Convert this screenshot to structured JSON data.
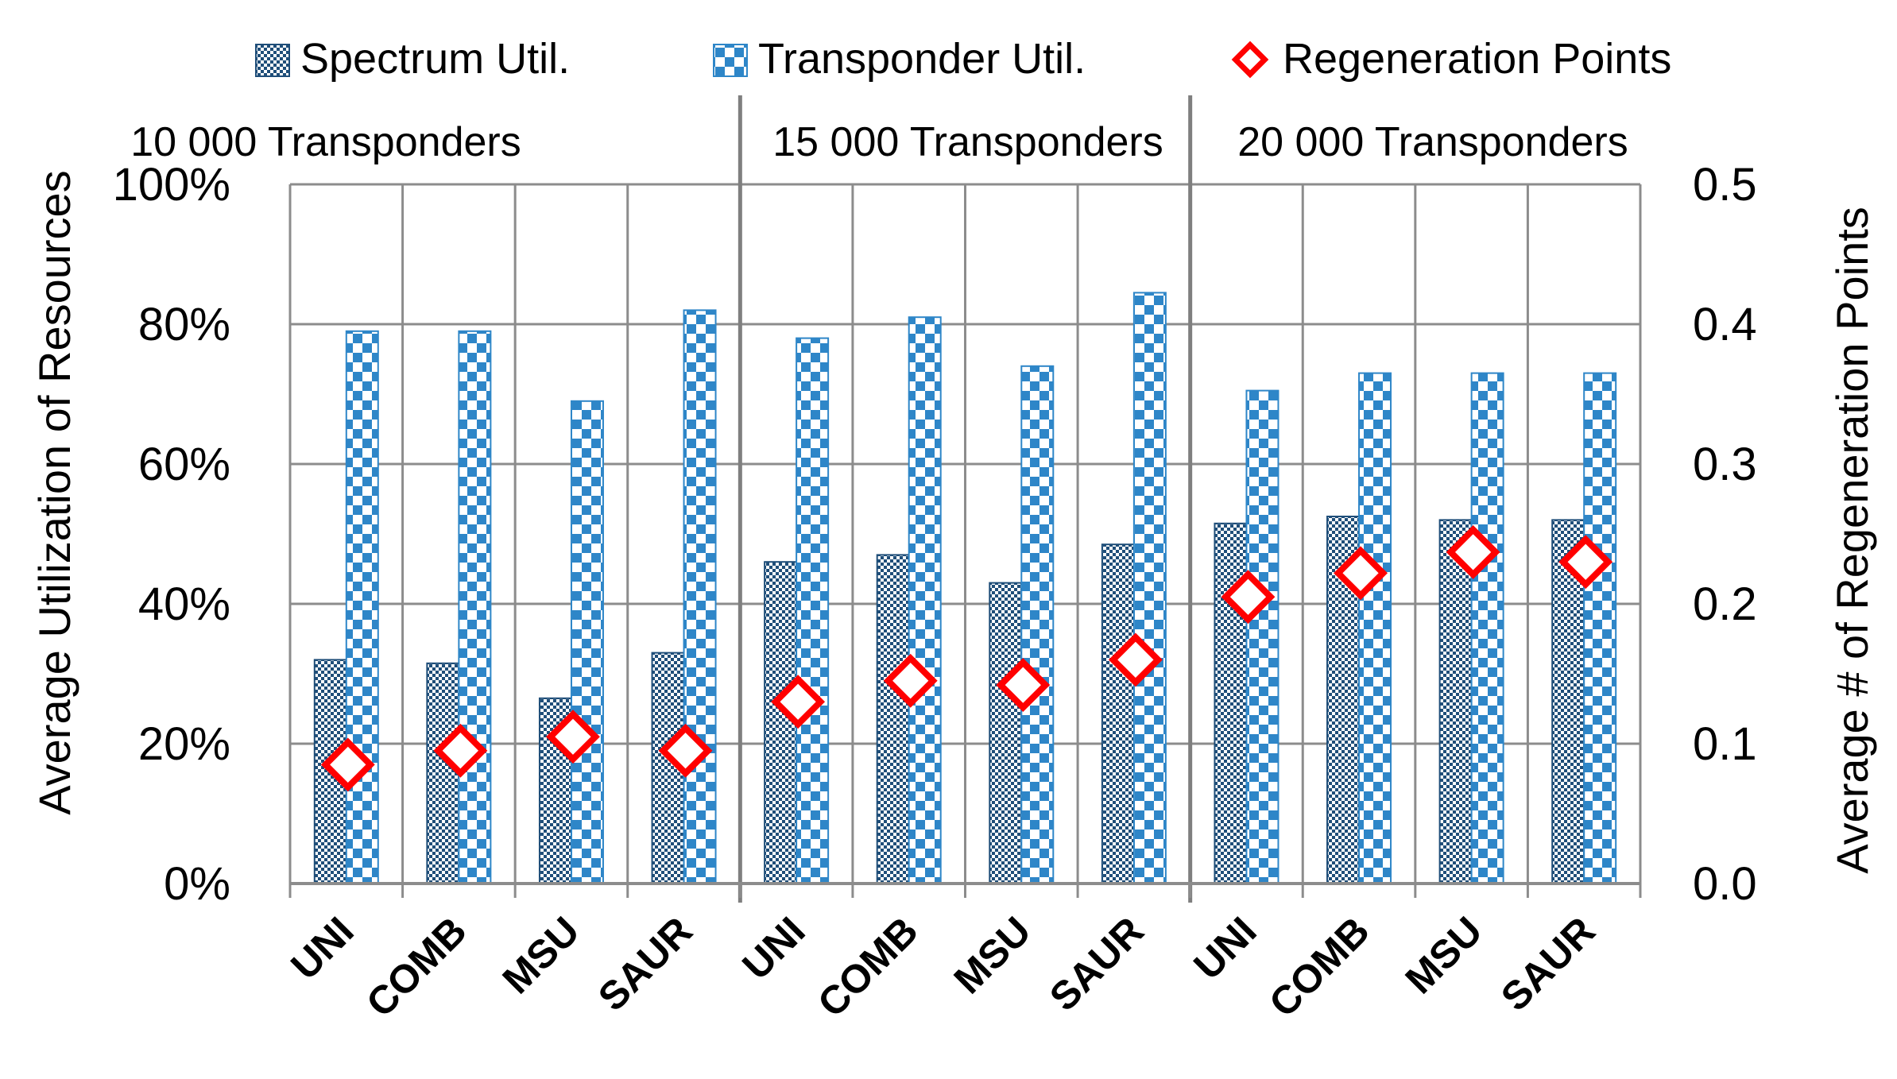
{
  "chart_data": {
    "type": "bar",
    "title": "",
    "legend": {
      "placement": "top",
      "items": [
        {
          "name": "Spectrum Util.",
          "kind": "bar-pattern-small-check",
          "color": "#1f4e79"
        },
        {
          "name": "Transponder Util.",
          "kind": "bar-pattern-large-check",
          "color": "#2e86c8"
        },
        {
          "name": "Regeneration Points",
          "kind": "diamond-marker",
          "color": "#ff0000"
        }
      ]
    },
    "groups": [
      {
        "label": "10 000 Transponders",
        "categories": [
          "UNI",
          "COMB",
          "MSU",
          "SAUR"
        ]
      },
      {
        "label": "15 000 Transponders",
        "categories": [
          "UNI",
          "COMB",
          "MSU",
          "SAUR"
        ]
      },
      {
        "label": "20 000 Transponders",
        "categories": [
          "UNI",
          "COMB",
          "MSU",
          "SAUR"
        ]
      }
    ],
    "categories": [
      "UNI",
      "COMB",
      "MSU",
      "SAUR",
      "UNI",
      "COMB",
      "MSU",
      "SAUR",
      "UNI",
      "COMB",
      "MSU",
      "SAUR"
    ],
    "series": [
      {
        "name": "Spectrum Util.",
        "axis": "left",
        "values": [
          32,
          31.5,
          26.5,
          33,
          46,
          47,
          43,
          48.5,
          51.5,
          52.5,
          52,
          52
        ]
      },
      {
        "name": "Transponder Util.",
        "axis": "left",
        "values": [
          79,
          79,
          69,
          82,
          78,
          81,
          74,
          84.5,
          70.5,
          73,
          73,
          73
        ]
      },
      {
        "name": "Regeneration Points",
        "axis": "right",
        "type": "scatter",
        "values": [
          0.085,
          0.095,
          0.105,
          0.095,
          0.13,
          0.145,
          0.142,
          0.16,
          0.205,
          0.222,
          0.237,
          0.23
        ]
      }
    ],
    "y_left": {
      "label": "Average Utilization of Resources",
      "range": [
        0,
        100
      ],
      "ticks": [
        "0%",
        "20%",
        "40%",
        "60%",
        "80%",
        "100%"
      ]
    },
    "y_right": {
      "label": "Average # of Regeneration Points",
      "range": [
        0,
        0.5
      ],
      "ticks": [
        "0.0",
        "0.1",
        "0.2",
        "0.3",
        "0.4",
        "0.5"
      ]
    },
    "grid": true
  }
}
